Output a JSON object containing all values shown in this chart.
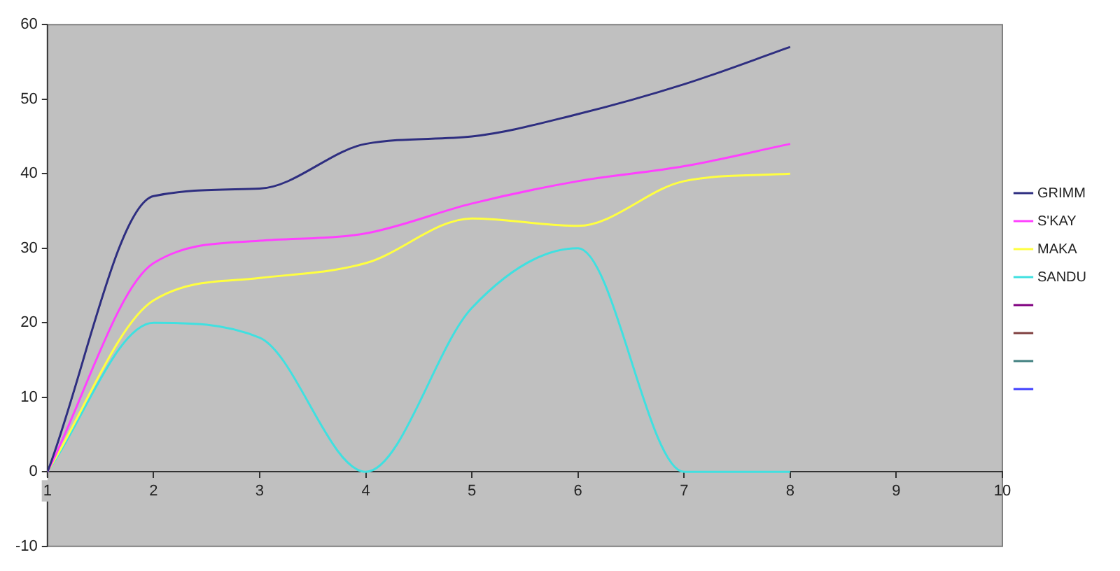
{
  "chart_data": {
    "type": "line",
    "x": [
      1,
      2,
      3,
      4,
      5,
      6,
      7,
      8
    ],
    "series": [
      {
        "name": "GRIMM",
        "color": "#2e2e80",
        "values": [
          0,
          37,
          38,
          44,
          45,
          48,
          52,
          57
        ]
      },
      {
        "name": "S'KAY",
        "color": "#ff40ff",
        "values": [
          0,
          28,
          31,
          32,
          36,
          39,
          41,
          44
        ]
      },
      {
        "name": "MAKA",
        "color": "#ffff40",
        "values": [
          0,
          23,
          26,
          28,
          34,
          33,
          39,
          40
        ]
      },
      {
        "name": "SANDU",
        "color": "#40e0e0",
        "values": [
          0,
          20,
          18,
          0,
          22,
          30,
          0,
          0
        ]
      },
      {
        "color": "#800080",
        "values": [
          null,
          null,
          null,
          null,
          null,
          null,
          null,
          null
        ]
      },
      {
        "color": "#804040",
        "values": [
          null,
          null,
          null,
          null,
          null,
          null,
          null,
          null
        ]
      },
      {
        "color": "#408080",
        "values": [
          null,
          null,
          null,
          null,
          null,
          null,
          null,
          null
        ]
      },
      {
        "color": "#4040ff",
        "values": [
          null,
          null,
          null,
          null,
          null,
          null,
          null,
          null
        ]
      }
    ],
    "xlim": [
      1,
      10
    ],
    "xticks": [
      1,
      2,
      3,
      4,
      5,
      6,
      7,
      8,
      9,
      10
    ],
    "ylim": [
      -10,
      60
    ],
    "yticks": [
      -10,
      0,
      10,
      20,
      30,
      40,
      50,
      60
    ],
    "grid": false,
    "legend": "right",
    "marker": "none",
    "line_style": "solid"
  }
}
